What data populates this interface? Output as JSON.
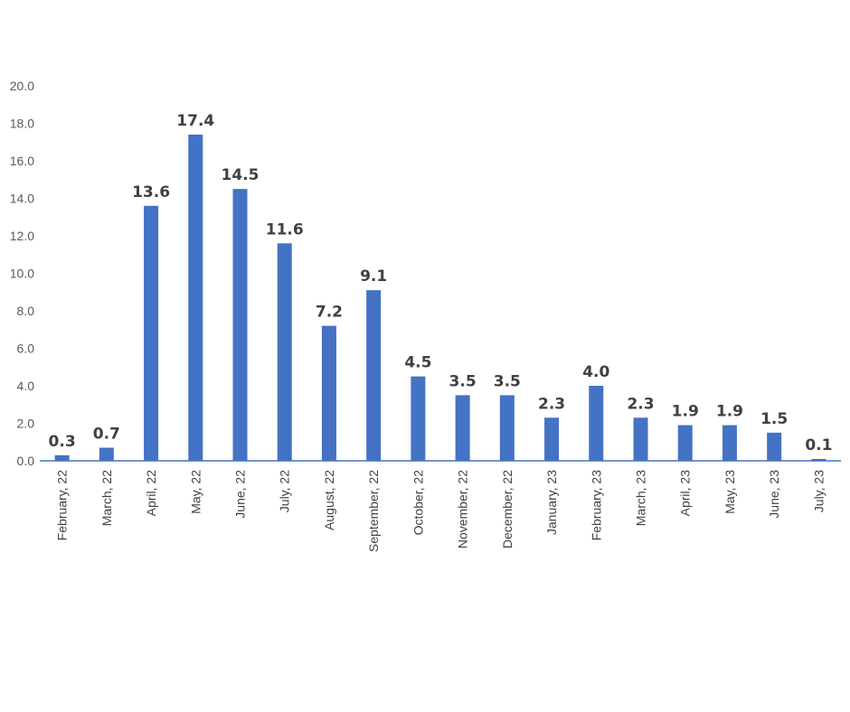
{
  "chart_data": {
    "type": "bar",
    "categories": [
      "February, 22",
      "March, 22",
      "April, 22",
      "May, 22",
      "June, 22",
      "July, 22",
      "August, 22",
      "September, 22",
      "October, 22",
      "November, 22",
      "December, 22",
      "January, 23",
      "February, 23",
      "March, 23",
      "April, 23",
      "May, 23",
      "June, 23",
      "July, 23"
    ],
    "values": [
      0.3,
      0.7,
      13.6,
      17.4,
      14.5,
      11.6,
      7.2,
      9.1,
      4.5,
      3.5,
      3.5,
      2.3,
      4.0,
      2.3,
      1.9,
      1.9,
      1.5,
      0.1
    ],
    "data_labels": [
      "0.3",
      "0.7",
      "13.6",
      "17.4",
      "14.5",
      "11.6",
      "7.2",
      "9.1",
      "4.5",
      "3.5",
      "3.5",
      "2.3",
      "4.0",
      "2.3",
      "1.9",
      "1.9",
      "1.5",
      "0.1"
    ],
    "y_ticks": [
      "0.0",
      "2.0",
      "4.0",
      "6.0",
      "8.0",
      "10.0",
      "12.0",
      "14.0",
      "16.0",
      "18.0",
      "20.0"
    ],
    "ylim": [
      0,
      20
    ],
    "title": "",
    "xlabel": "",
    "ylabel": "",
    "grid": false,
    "legend": "none",
    "bar_color": "#4472C4",
    "axis_color": "#4472C4"
  }
}
